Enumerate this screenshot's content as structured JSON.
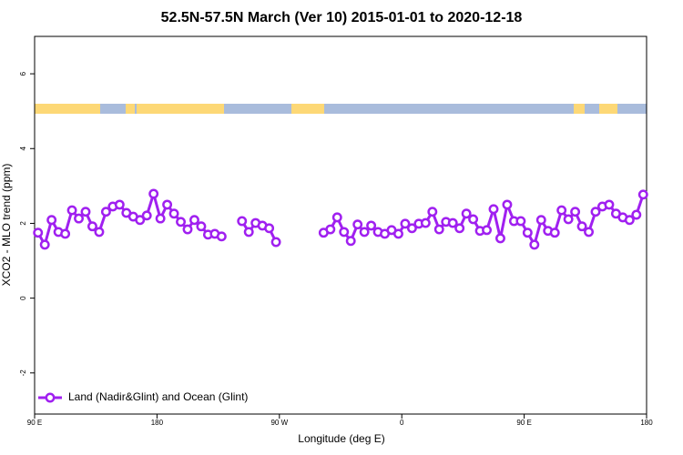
{
  "chart_data": {
    "type": "line",
    "title": "52.5N-57.5N March (Ver 10)   2015-01-01 to 2020-12-18",
    "x_label": "Longitude (deg E)",
    "y_label": "XCO2 - MLO trend (ppm)",
    "xlim": [
      90,
      540
    ],
    "ylim": [
      -3.1,
      7
    ],
    "xticks": [
      {
        "value": 90,
        "label": "90 E"
      },
      180,
      {
        "value": 270,
        "label": "90 W"
      },
      {
        "value": 360,
        "label": "0"
      },
      {
        "value": 450,
        "label": "90 E"
      },
      {
        "value": 540,
        "label": "180"
      }
    ],
    "yticks": [
      -2,
      0,
      2,
      4,
      6
    ],
    "legend": "bottom-left",
    "x": [
      92.5,
      97.5,
      102.5,
      107.5,
      112.5,
      117.5,
      122.5,
      127.5,
      132.5,
      137.5,
      142.5,
      147.5,
      152.5,
      157.5,
      162.5,
      167.5,
      172.5,
      177.5,
      182.5,
      187.5,
      192.5,
      197.5,
      202.5,
      207.5,
      212.5,
      217.5,
      222.5,
      227.5,
      232.5,
      237.5,
      242.5,
      247.5,
      252.5,
      257.5,
      262.5,
      267.5,
      272.5,
      277.5,
      282.5,
      287.5,
      292.5,
      297.5,
      302.5,
      307.5,
      312.5,
      317.5,
      322.5,
      327.5,
      332.5,
      337.5,
      342.5,
      347.5,
      352.5,
      357.5,
      362.5,
      367.5,
      372.5,
      377.5,
      382.5,
      387.5,
      392.5,
      397.5,
      402.5,
      407.5,
      412.5,
      417.5,
      422.5,
      427.5,
      432.5,
      437.5,
      442.5,
      447.5,
      452.5,
      457.5,
      462.5,
      467.5,
      472.5,
      477.5,
      482.5,
      487.5,
      492.5,
      497.5,
      502.5,
      507.5,
      512.5,
      517.5,
      522.5,
      527.5,
      532.5,
      537.5
    ],
    "series": [
      {
        "name": "Land (Nadir&Glint) and Ocean (Glint)",
        "color": "#a020f0",
        "values": [
          1.75,
          1.43,
          2.09,
          1.77,
          1.72,
          2.35,
          2.13,
          2.31,
          1.92,
          1.77,
          2.31,
          2.45,
          2.5,
          2.28,
          2.18,
          2.09,
          2.21,
          2.79,
          2.13,
          2.5,
          2.26,
          2.04,
          1.84,
          2.09,
          1.92,
          1.7,
          1.72,
          1.65,
          null,
          null,
          2.06,
          1.77,
          2.01,
          1.94,
          1.87,
          1.5,
          null,
          null,
          null,
          null,
          null,
          null,
          1.75,
          1.84,
          2.16,
          1.77,
          1.53,
          1.97,
          1.77,
          1.94,
          1.77,
          1.72,
          1.82,
          1.72,
          1.99,
          1.87,
          1.99,
          2.01,
          2.31,
          1.84,
          2.04,
          2.01,
          1.87,
          2.26,
          2.11,
          1.8,
          1.82,
          2.38,
          1.6,
          2.5,
          2.06,
          2.06,
          1.75,
          1.43,
          2.09,
          1.8,
          1.75,
          2.35,
          2.11,
          2.31,
          1.92,
          1.77,
          2.31,
          2.45,
          2.5,
          2.26,
          2.16,
          2.09,
          2.23,
          2.77
        ]
      }
    ]
  }
}
